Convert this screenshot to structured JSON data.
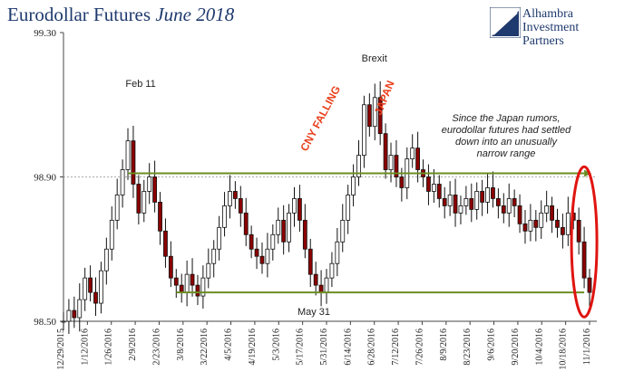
{
  "header": {
    "title_main": "Eurodollar Futures",
    "title_sub": "June 2018"
  },
  "logo": {
    "line1": "Alhambra",
    "line2": "Investment",
    "line3": "Partners"
  },
  "chart_data": {
    "type": "candlestick",
    "title": "Eurodollar Futures June 2018",
    "ylim": [
      98.5,
      99.3
    ],
    "yticks": [
      "99.30",
      "98.90",
      "98.50"
    ],
    "xticks": [
      "12/29/2015",
      "1/12/2016",
      "1/26/2016",
      "2/9/2016",
      "2/23/2016",
      "3/8/2016",
      "3/22/2016",
      "4/5/2016",
      "4/19/2016",
      "5/3/2016",
      "5/17/2016",
      "5/31/2016",
      "6/14/2016",
      "6/28/2016",
      "7/12/2016",
      "7/26/2016",
      "8/9/2016",
      "8/23/2016",
      "9/6/2016",
      "9/20/2016",
      "10/4/2016",
      "10/18/2016",
      "11/1/2016"
    ],
    "dashed_reference": 98.9,
    "close_path": [
      [
        0,
        98.5
      ],
      [
        1,
        98.53
      ],
      [
        2,
        98.51
      ],
      [
        3,
        98.56
      ],
      [
        4,
        98.62
      ],
      [
        5,
        98.58
      ],
      [
        6,
        98.55
      ],
      [
        7,
        98.64
      ],
      [
        8,
        98.7
      ],
      [
        9,
        98.78
      ],
      [
        10,
        98.85
      ],
      [
        11,
        98.92
      ],
      [
        12,
        99.0
      ],
      [
        13,
        98.88
      ],
      [
        14,
        98.8
      ],
      [
        15,
        98.86
      ],
      [
        16,
        98.9
      ],
      [
        17,
        98.83
      ],
      [
        18,
        98.75
      ],
      [
        19,
        98.68
      ],
      [
        20,
        98.62
      ],
      [
        21,
        98.6
      ],
      [
        22,
        98.58
      ],
      [
        23,
        98.63
      ],
      [
        24,
        98.6
      ],
      [
        25,
        98.57
      ],
      [
        26,
        98.62
      ],
      [
        27,
        98.66
      ],
      [
        28,
        98.7
      ],
      [
        29,
        98.76
      ],
      [
        30,
        98.82
      ],
      [
        31,
        98.86
      ],
      [
        32,
        98.84
      ],
      [
        33,
        98.8
      ],
      [
        34,
        98.74
      ],
      [
        35,
        98.7
      ],
      [
        36,
        98.68
      ],
      [
        37,
        98.66
      ],
      [
        38,
        98.7
      ],
      [
        39,
        98.74
      ],
      [
        40,
        98.78
      ],
      [
        41,
        98.72
      ],
      [
        42,
        98.8
      ],
      [
        43,
        98.84
      ],
      [
        44,
        98.78
      ],
      [
        45,
        98.7
      ],
      [
        46,
        98.63
      ],
      [
        47,
        98.6
      ],
      [
        48,
        98.58
      ],
      [
        49,
        98.62
      ],
      [
        50,
        98.66
      ],
      [
        51,
        98.72
      ],
      [
        52,
        98.78
      ],
      [
        53,
        98.85
      ],
      [
        54,
        98.9
      ],
      [
        55,
        98.96
      ],
      [
        56,
        99.1
      ],
      [
        57,
        99.04
      ],
      [
        58,
        99.12
      ],
      [
        59,
        99.02
      ],
      [
        60,
        98.92
      ],
      [
        61,
        98.96
      ],
      [
        62,
        98.9
      ],
      [
        63,
        98.87
      ],
      [
        64,
        98.95
      ],
      [
        65,
        98.98
      ],
      [
        66,
        98.92
      ],
      [
        67,
        98.9
      ],
      [
        68,
        98.86
      ],
      [
        69,
        98.88
      ],
      [
        70,
        98.84
      ],
      [
        71,
        98.82
      ],
      [
        72,
        98.85
      ],
      [
        73,
        98.8
      ],
      [
        74,
        98.82
      ],
      [
        75,
        98.84
      ],
      [
        76,
        98.81
      ],
      [
        77,
        98.86
      ],
      [
        78,
        98.83
      ],
      [
        79,
        98.87
      ],
      [
        80,
        98.84
      ],
      [
        81,
        98.82
      ],
      [
        82,
        98.8
      ],
      [
        83,
        98.84
      ],
      [
        84,
        98.82
      ],
      [
        85,
        98.77
      ],
      [
        86,
        98.75
      ],
      [
        87,
        98.78
      ],
      [
        88,
        98.76
      ],
      [
        89,
        98.8
      ],
      [
        90,
        98.82
      ],
      [
        91,
        98.78
      ],
      [
        92,
        98.76
      ],
      [
        93,
        98.74
      ],
      [
        94,
        98.8
      ],
      [
        95,
        98.78
      ],
      [
        96,
        98.72
      ],
      [
        97,
        98.62
      ],
      [
        98,
        98.58
      ]
    ],
    "x_points": 99,
    "lines": [
      {
        "from_x": 12,
        "to_x": 97,
        "y_start": 98.91,
        "y_end": 98.91,
        "color": "#6b8e23"
      },
      {
        "from_x": 21,
        "to_x": 97,
        "y_start": 98.58,
        "y_end": 98.58,
        "color": "#6b8e23"
      }
    ],
    "annotations": [
      {
        "text": "Feb 11",
        "x_label": "2/9/2016",
        "value": 99.15
      },
      {
        "text": "Brexit",
        "x_label": "6/28/2016",
        "value": 99.23
      },
      {
        "text": "May 31",
        "x_label": "5/31/2016",
        "value": 98.51
      },
      {
        "text": "CNY FALLING",
        "color": "#e8401c"
      },
      {
        "text": "JAPAN",
        "color": "#e8401c"
      },
      {
        "text": "Since the Japan rumors, eurodollar futures had settled down into an unusually narrow range"
      }
    ]
  }
}
